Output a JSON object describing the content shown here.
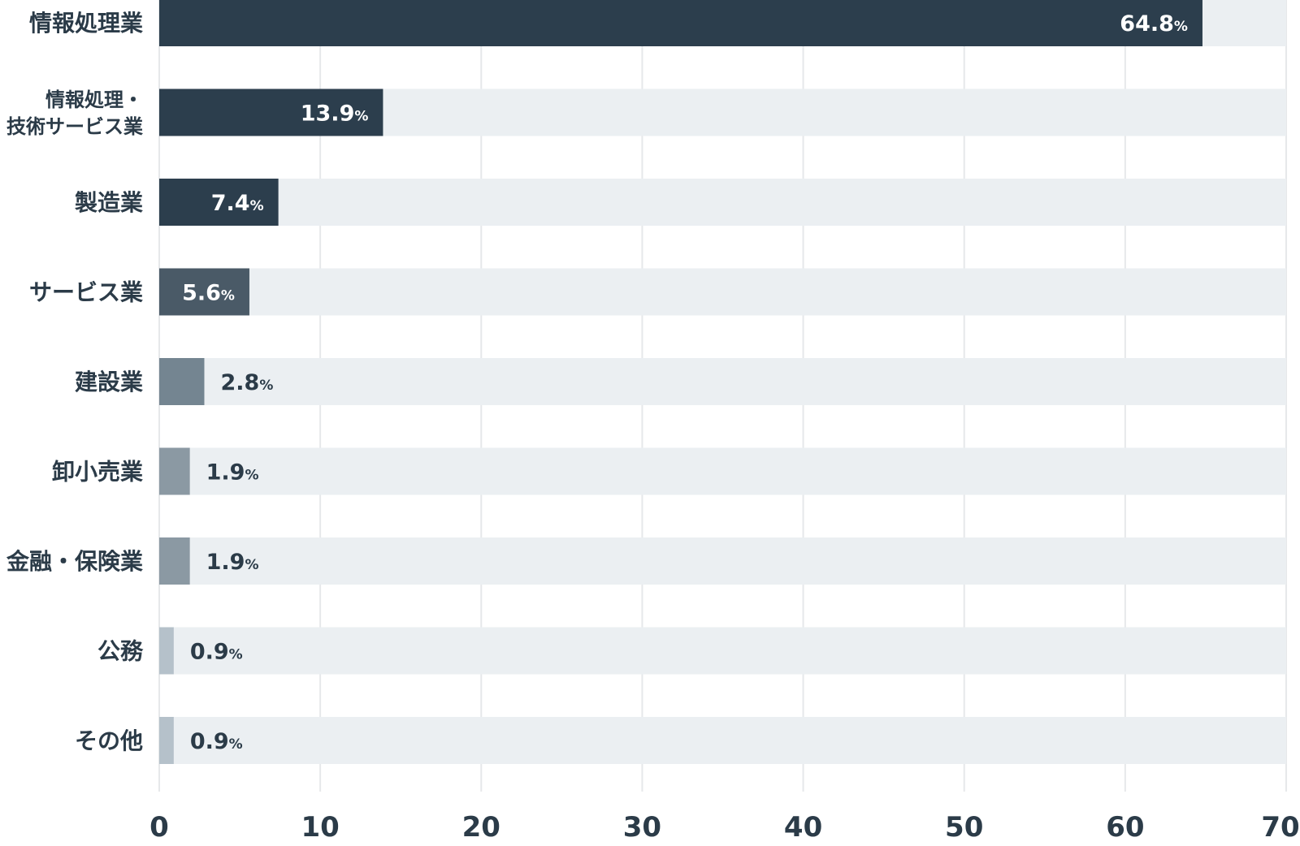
{
  "chart_data": {
    "type": "bar",
    "orientation": "horizontal",
    "categories": [
      [
        "情報処理業"
      ],
      [
        "情報処理・",
        "技術サービス業"
      ],
      [
        "製造業"
      ],
      [
        "サービス業"
      ],
      [
        "建設業"
      ],
      [
        "卸小売業"
      ],
      [
        "金融・保険業"
      ],
      [
        "公務"
      ],
      [
        "その他"
      ]
    ],
    "values": [
      64.8,
      13.9,
      7.4,
      5.6,
      2.8,
      1.9,
      1.9,
      0.9,
      0.9
    ],
    "value_labels": [
      "64.8",
      "13.9",
      "7.4",
      "5.6",
      "2.8",
      "1.9",
      "1.9",
      "0.9",
      "0.9"
    ],
    "value_suffix": "%",
    "xlim": [
      0,
      70
    ],
    "xticks": [
      0,
      10,
      20,
      30,
      40,
      50,
      60,
      70
    ],
    "grid": true,
    "legend": "none",
    "title": "",
    "xlabel": "",
    "ylabel": "",
    "colors": {
      "track": "#ebeff2",
      "grid": "#e6e8ea",
      "bar_levels": [
        "#2c3e4d",
        "#4a5a67",
        "#748591",
        "#8b99a3",
        "#b5c1ca"
      ],
      "label_on_bar": "#ffffff",
      "label_outside": "#2b3b48"
    }
  }
}
